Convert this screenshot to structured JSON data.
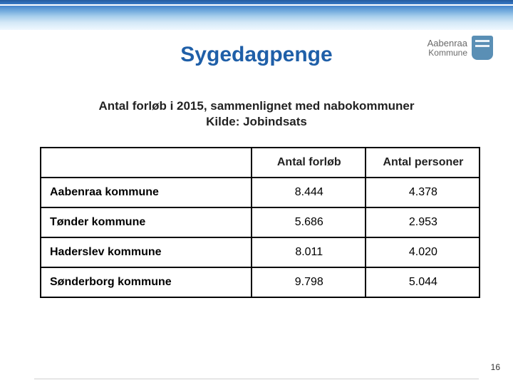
{
  "header": {
    "logo_line1": "Aabenraa",
    "logo_line2": "Kommune"
  },
  "title": "Sygedagpenge",
  "subtitle_line1": "Antal forløb i 2015, sammenlignet med nabokommuner",
  "subtitle_line2": "Kilde: Jobindsats",
  "table": {
    "columns": [
      "",
      "Antal forløb",
      "Antal personer"
    ],
    "rows": [
      [
        "Aabenraa kommune",
        "8.444",
        "4.378"
      ],
      [
        "Tønder kommune",
        "5.686",
        "2.953"
      ],
      [
        "Haderslev kommune",
        "8.011",
        "4.020"
      ],
      [
        "Sønderborg kommune",
        "9.798",
        "5.044"
      ]
    ]
  },
  "page_number": "16",
  "colors": {
    "title_color": "#1f5fa8",
    "text_color": "#222222",
    "border_color": "#000000",
    "background": "#ffffff"
  }
}
